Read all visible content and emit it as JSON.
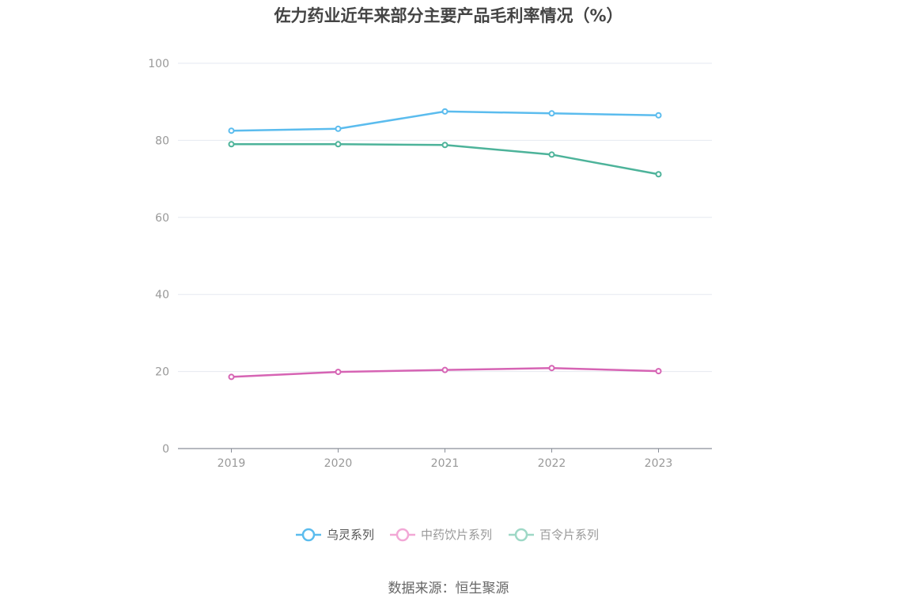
{
  "title": "佐力药业近年来部分主要产品毛利率情况（%）",
  "source": "数据来源：恒生聚源",
  "chart_data": {
    "type": "line",
    "title": "佐力药业近年来部分主要产品毛利率情况（%）",
    "categories": [
      "2019",
      "2020",
      "2021",
      "2022",
      "2023"
    ],
    "ylim": [
      0,
      100
    ],
    "yticks": [
      0,
      20,
      40,
      60,
      80,
      100
    ],
    "grid": true,
    "legend_position": "bottom",
    "series": [
      {
        "name": "乌灵系列",
        "color": "#5bbcee",
        "values": [
          82.5,
          83.0,
          87.5,
          87.0,
          86.5
        ]
      },
      {
        "name": "中药饮片系列",
        "color": "#d664b4",
        "values": [
          18.6,
          19.9,
          20.4,
          20.9,
          20.1
        ]
      },
      {
        "name": "百令片系列",
        "color": "#4db39a",
        "values": [
          79.0,
          79.0,
          78.8,
          76.3,
          71.2
        ]
      }
    ],
    "legend_colors": [
      "#5bbcee",
      "#f2a8d6",
      "#9ed8c6"
    ],
    "legend_text_colors": [
      "#555555",
      "#999999",
      "#999999"
    ]
  }
}
